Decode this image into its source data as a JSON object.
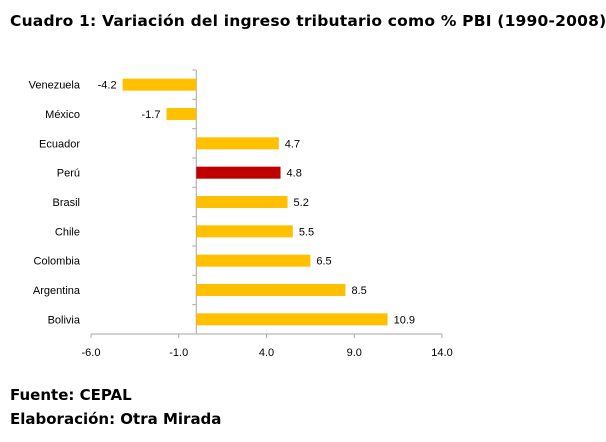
{
  "chart_data": {
    "type": "bar",
    "orientation": "horizontal",
    "title": "Cuadro 1: Variación del ingreso tributario como % PBI (1990-2008)",
    "categories": [
      "Venezuela",
      "México",
      "Ecuador",
      "Perú",
      "Brasil",
      "Chile",
      "Colombia",
      "Argentina",
      "Bolivia"
    ],
    "values": [
      -4.2,
      -1.7,
      4.7,
      4.8,
      5.2,
      5.5,
      6.5,
      8.5,
      10.9
    ],
    "value_labels": [
      "-4.2",
      "-1.7",
      "4.7",
      "4.8",
      "5.2",
      "5.5",
      "6.5",
      "8.5",
      "10.9"
    ],
    "highlight": "Perú",
    "xlim": [
      -6.0,
      14.0
    ],
    "xticks": [
      -6.0,
      -1.0,
      4.0,
      9.0,
      14.0
    ],
    "xtick_labels": [
      "-6.0",
      "-1.0",
      "4.0",
      "9.0",
      "14.0"
    ],
    "xlabel": "",
    "ylabel": "",
    "grid": false,
    "colors": {
      "default": "#FFC000",
      "highlight": "#C00000",
      "axis": "#A6A6A6"
    }
  },
  "footer": {
    "source": "Fuente: CEPAL",
    "elaboration": "Elaboración: Otra Mirada"
  }
}
